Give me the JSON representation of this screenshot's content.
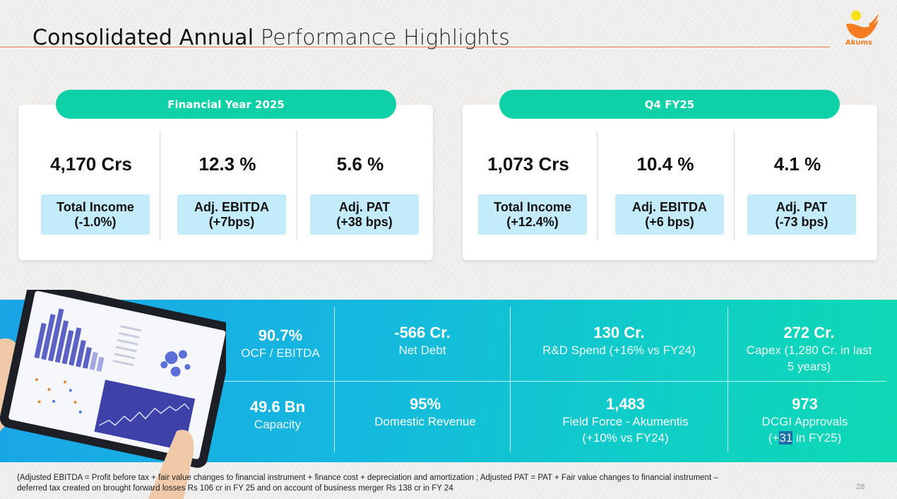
{
  "header": {
    "title_bold": "Consolidated Annual",
    "title_light": "Performance Highlights",
    "logo_text": "Akums"
  },
  "fy25": {
    "pill": "Financial Year 2025",
    "metrics": [
      {
        "value": "4,170 Crs",
        "label_line1": "Total Income",
        "label_line2": "(-1.0%)"
      },
      {
        "value": "12.3 %",
        "label_line1": "Adj. EBITDA",
        "label_line2": "(+7bps)"
      },
      {
        "value": "5.6 %",
        "label_line1": "Adj. PAT",
        "label_line2": "(+38 bps)"
      }
    ]
  },
  "q4": {
    "pill": "Q4 FY25",
    "metrics": [
      {
        "value": "1,073 Crs",
        "label_line1": "Total Income",
        "label_line2": "(+12.4%)"
      },
      {
        "value": "10.4 %",
        "label_line1": "Adj. EBITDA",
        "label_line2": "(+6 bps)"
      },
      {
        "value": "4.1 %",
        "label_line1": "Adj. PAT",
        "label_line2": "(-73 bps)"
      }
    ]
  },
  "stats": {
    "ocf": {
      "value": "90.7%",
      "label": "OCF / EBITDA"
    },
    "net_debt": {
      "value": "-566 Cr.",
      "label": "Net Debt"
    },
    "rnd": {
      "value": "130 Cr.",
      "label": "R&D Spend (+16% vs FY24)"
    },
    "capex": {
      "value": "272 Cr.",
      "label_line1": "Capex (1,280 Cr. in last",
      "label_line2": "5 years)"
    },
    "capacity": {
      "value": "49.6 Bn",
      "label": "Capacity"
    },
    "domestic": {
      "value": "95%",
      "label": "Domestic Revenue"
    },
    "field_force": {
      "value": "1,483",
      "label_line1": "Field Force - Akumentis",
      "label_line2": "(+10% vs FY24)"
    },
    "dcgi": {
      "value": "973",
      "label_line1": "DCGI Approvals",
      "label_line2_a": "(+",
      "label_line2_b": "31",
      "label_line2_c": " in FY25)"
    }
  },
  "footnote": {
    "line1": "(Adjusted EBITDA = Profit before tax + fair value changes to financial instrument + finance cost + depreciation and amortization ; Adjusted PAT = PAT + Fair value changes to financial instrument –",
    "line2": "deferred tax created on brought forward losses Rs 106 cr in FY 25 and on account of business merger Rs 138 cr in FY 24"
  },
  "page_number": "28",
  "colors": {
    "accent_orange": "#e07b39",
    "pill_green": "#0fd1a8",
    "label_blue": "#c4ebf9",
    "band_blue": "#1aa5e6"
  }
}
